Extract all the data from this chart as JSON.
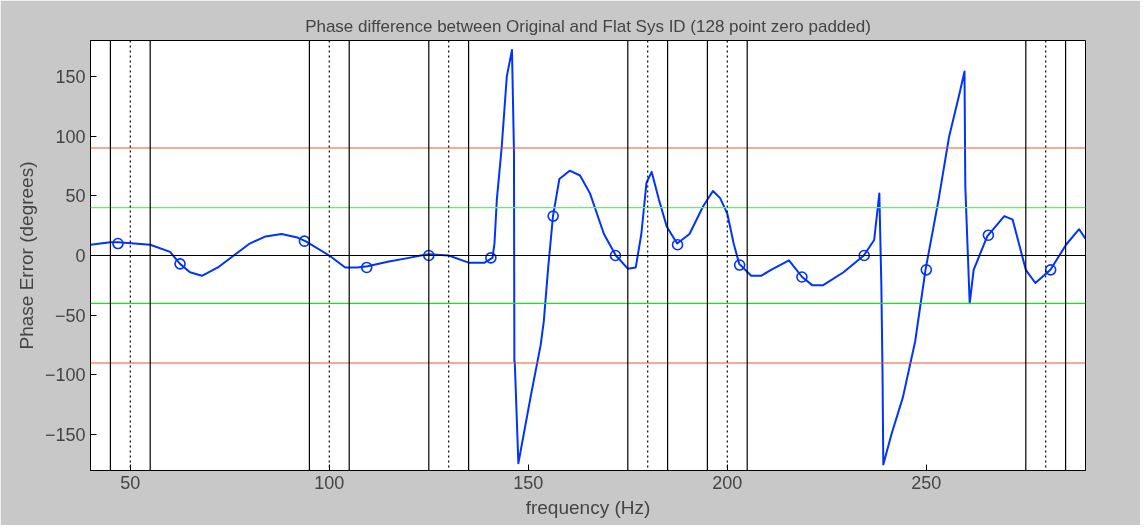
{
  "chart_data": {
    "type": "line",
    "title": "Phase difference between Original and Flat Sys ID (128 point zero padded)",
    "xlabel": "frequency (Hz)",
    "ylabel": "Phase Error (degrees)",
    "xlim": [
      40,
      290
    ],
    "ylim": [
      -180,
      180
    ],
    "xticks": [
      50,
      100,
      150,
      200,
      250
    ],
    "yticks": [
      -150,
      -100,
      -50,
      0,
      50,
      100,
      150
    ],
    "grid": false,
    "series": [
      {
        "color": "#0033ff",
        "marker": "none",
        "x": [
          40,
          45,
          47,
          55,
          60,
          62.5,
          65,
          68,
          72,
          76,
          80,
          84,
          88,
          92,
          94,
          100,
          104,
          107,
          109.6,
          115,
          120,
          123,
          125,
          130,
          135,
          139,
          141,
          141.5,
          142.1,
          143.3,
          144.6,
          145.9,
          146.4,
          146.5,
          146.6,
          147.5,
          150.6,
          153.1,
          153.9,
          155,
          156.2,
          157.8,
          160.4,
          163,
          165.5,
          169,
          172,
          175,
          177,
          178.4,
          179.7,
          181,
          182.8,
          184.8,
          187.4,
          190.5,
          193.9,
          196.4,
          198.2,
          200,
          201.6,
          203,
          206,
          208.5,
          211,
          215.5,
          218.8,
          221.4,
          224,
          229.2,
          234.3,
          236.9,
          238.2,
          238.7,
          239,
          239.2,
          241.3,
          244.1,
          247.2,
          249.8,
          253.1,
          255.7,
          258.3,
          259.6,
          259.8,
          260.9,
          261.9,
          265.3,
          269.6,
          271.7,
          275,
          277.4,
          281.2,
          285.1,
          288.4,
          290
        ],
        "values": [
          9,
          11,
          11,
          9,
          3,
          -7,
          -14,
          -17,
          -10,
          0,
          10,
          16,
          18,
          15,
          12,
          0,
          -10,
          -10,
          -9,
          -5,
          -2,
          0,
          1,
          0,
          -6,
          -6,
          -2,
          10,
          47,
          90,
          150,
          172,
          87,
          -89,
          -89,
          -174,
          -118,
          -75,
          -55,
          -10,
          33,
          64,
          71,
          67,
          52,
          18,
          0,
          -11,
          -10,
          18,
          61,
          70,
          47,
          24,
          10,
          18,
          41,
          54,
          48,
          35,
          10,
          -7,
          -17,
          -17,
          -12,
          -4,
          -18,
          -25,
          -25,
          -14,
          0,
          13,
          52,
          -24,
          -98,
          -175,
          -149,
          -119,
          -72,
          -12,
          47,
          99,
          135,
          154,
          58,
          -40,
          -12,
          16,
          33,
          30,
          -12,
          -23,
          -12,
          9,
          22,
          14
        ]
      },
      {
        "type": "scatter",
        "color": "#0033ff",
        "marker": "circle",
        "x": [
          46.9,
          62.5,
          93.75,
          109.4,
          125,
          140.6,
          156.25,
          171.9,
          187.5,
          203.1,
          218.75,
          234.4,
          250,
          265.6,
          281.25
        ],
        "values": [
          10,
          -7,
          12,
          -10,
          0,
          -2,
          33,
          0,
          9,
          -8,
          -18,
          0,
          -12,
          17,
          -12
        ]
      }
    ],
    "ref_lines": [
      {
        "axis": "y",
        "value": 0,
        "color": "#000000",
        "line_style": "solid"
      },
      {
        "axis": "y",
        "value": 40,
        "color": "#66ee66",
        "line_style": "solid"
      },
      {
        "axis": "y",
        "value": -40,
        "color": "#22dd22",
        "line_style": "solid"
      },
      {
        "axis": "y",
        "value": 90,
        "color": "#ee5533",
        "line_style": "solid"
      },
      {
        "axis": "y",
        "value": -90,
        "color": "#ee5533",
        "line_style": "solid"
      },
      {
        "axis": "x",
        "value": 45,
        "color": "#000000",
        "line_style": "solid"
      },
      {
        "axis": "x",
        "value": 50,
        "color": "#000000",
        "line_style": "dotted"
      },
      {
        "axis": "x",
        "value": 55,
        "color": "#000000",
        "line_style": "solid"
      },
      {
        "axis": "x",
        "value": 95,
        "color": "#000000",
        "line_style": "solid"
      },
      {
        "axis": "x",
        "value": 100,
        "color": "#000000",
        "line_style": "dotted"
      },
      {
        "axis": "x",
        "value": 105,
        "color": "#000000",
        "line_style": "solid"
      },
      {
        "axis": "x",
        "value": 125,
        "color": "#000000",
        "line_style": "solid"
      },
      {
        "axis": "x",
        "value": 130,
        "color": "#000000",
        "line_style": "dotted"
      },
      {
        "axis": "x",
        "value": 135,
        "color": "#000000",
        "line_style": "solid"
      },
      {
        "axis": "x",
        "value": 175,
        "color": "#000000",
        "line_style": "solid"
      },
      {
        "axis": "x",
        "value": 180,
        "color": "#000000",
        "line_style": "dotted"
      },
      {
        "axis": "x",
        "value": 185,
        "color": "#000000",
        "line_style": "solid"
      },
      {
        "axis": "x",
        "value": 195,
        "color": "#000000",
        "line_style": "solid"
      },
      {
        "axis": "x",
        "value": 200,
        "color": "#000000",
        "line_style": "dotted"
      },
      {
        "axis": "x",
        "value": 205,
        "color": "#000000",
        "line_style": "solid"
      },
      {
        "axis": "x",
        "value": 275,
        "color": "#000000",
        "line_style": "solid"
      },
      {
        "axis": "x",
        "value": 280,
        "color": "#000000",
        "line_style": "dotted"
      },
      {
        "axis": "x",
        "value": 285,
        "color": "#000000",
        "line_style": "solid"
      }
    ]
  }
}
